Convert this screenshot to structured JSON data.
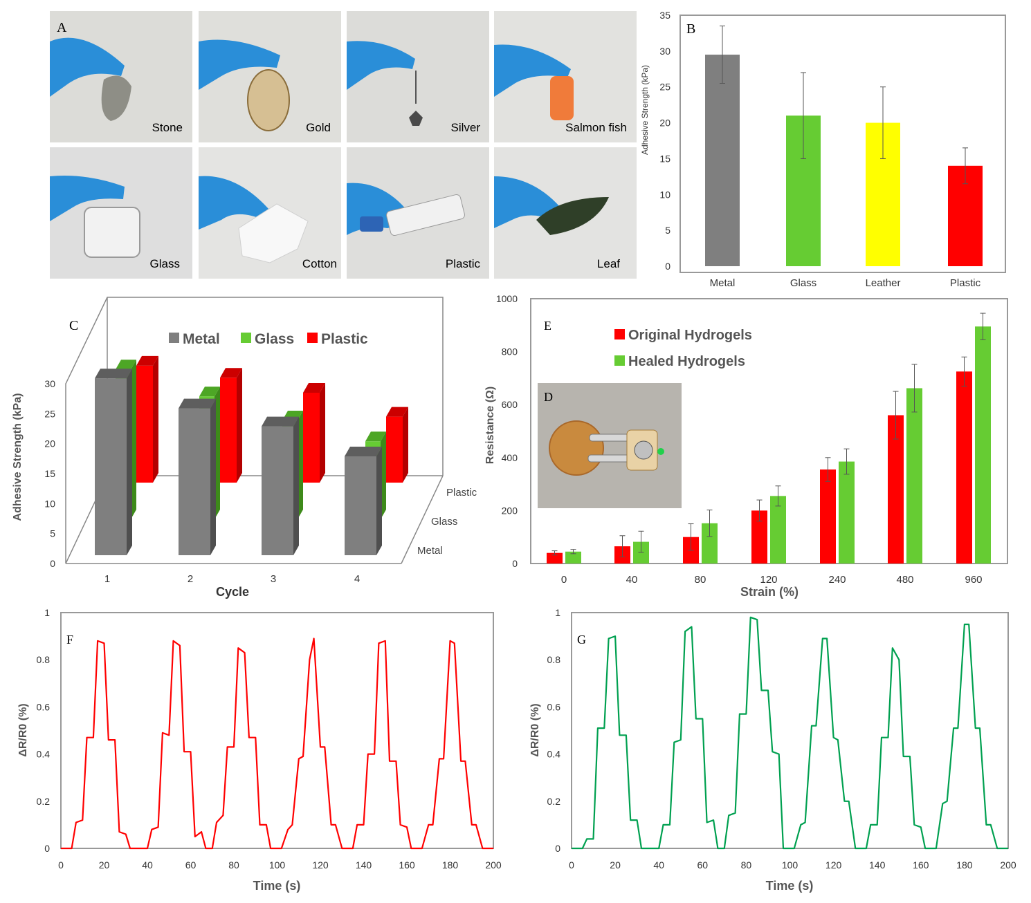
{
  "panel_labels": {
    "a": "A",
    "b": "B",
    "c": "C",
    "d": "D",
    "e": "E",
    "f": "F",
    "g": "G"
  },
  "photos": [
    {
      "label": "Stone"
    },
    {
      "label": "Gold"
    },
    {
      "label": "Silver"
    },
    {
      "label": "Salmon fish"
    },
    {
      "label": "Glass"
    },
    {
      "label": "Cotton"
    },
    {
      "label": "Plastic"
    },
    {
      "label": "Leaf"
    }
  ],
  "colors": {
    "gray": "#7f7f7f",
    "green": "#66cc33",
    "red": "#ff0000",
    "yellow": "#ffff00",
    "teal": "#00a050",
    "frame": "#999999"
  },
  "chart_data": [
    {
      "id": "B",
      "type": "bar",
      "title": "",
      "categories": [
        "Metal",
        "Glass",
        "Leather",
        "Plastic"
      ],
      "values": [
        29.5,
        21,
        20,
        14
      ],
      "errors": [
        4,
        6,
        5,
        2.5
      ],
      "bar_colors": [
        "#7f7f7f",
        "#66cc33",
        "#ffff00",
        "#ff0000"
      ],
      "xlabel": "",
      "ylabel": "Adhesive Strength (kPa)",
      "ylim": [
        0,
        35
      ],
      "yticks": [
        "0",
        "5",
        "10",
        "15",
        "20",
        "25",
        "30",
        "35"
      ]
    },
    {
      "id": "C",
      "type": "bar",
      "title": "",
      "categories": [
        "1",
        "2",
        "3",
        "4"
      ],
      "series": [
        {
          "name": "Metal",
          "values": [
            29.5,
            24.5,
            21.5,
            16.5
          ]
        },
        {
          "name": "Glass",
          "values": [
            25,
            20.5,
            16.5,
            13
          ]
        },
        {
          "name": "Plastic",
          "values": [
            19.5,
            17.5,
            15,
            11
          ]
        }
      ],
      "xlabel": "Cycle",
      "ylabel": "Adhesive Strength (kPa)",
      "ylim": [
        0,
        30
      ],
      "yticks": [
        "0",
        "5",
        "10",
        "15",
        "20",
        "25",
        "30"
      ],
      "depth_labels": [
        "Metal",
        "Glass",
        "Plastic"
      ]
    },
    {
      "id": "E",
      "type": "bar",
      "title": "",
      "categories": [
        "0",
        "40",
        "80",
        "120",
        "240",
        "480",
        "960"
      ],
      "series": [
        {
          "name": "Original Hydrogels",
          "values": [
            40,
            65,
            100,
            200,
            355,
            560,
            725
          ],
          "errors": [
            8,
            40,
            50,
            40,
            45,
            90,
            55
          ]
        },
        {
          "name": "Healed Hydrogels",
          "values": [
            45,
            82,
            152,
            255,
            385,
            662,
            895
          ],
          "errors": [
            8,
            40,
            50,
            38,
            48,
            90,
            50
          ]
        }
      ],
      "xlabel": "Strain (%)",
      "ylabel": "Resistance (Ω)",
      "ylim": [
        0,
        1000
      ],
      "yticks": [
        "0",
        "200",
        "400",
        "600",
        "800",
        "1000"
      ]
    },
    {
      "id": "F",
      "type": "line",
      "title": "",
      "series": [
        {
          "name": "Original",
          "x": [
            0,
            5,
            7,
            10,
            12,
            15,
            17,
            20,
            22,
            25,
            27,
            30,
            32,
            35,
            37,
            40,
            42,
            45,
            47,
            50,
            52,
            55,
            57,
            60,
            62,
            65,
            67,
            70,
            72,
            75,
            77,
            80,
            82,
            85,
            87,
            90,
            92,
            95,
            97,
            100,
            102,
            105,
            107,
            110,
            112,
            115,
            117,
            120,
            122,
            125,
            127,
            130,
            132,
            135,
            137,
            140,
            142,
            145,
            147,
            150,
            152,
            155,
            157,
            160,
            162,
            165,
            167,
            170,
            172,
            175,
            177,
            180,
            182,
            185,
            187,
            190,
            192,
            195,
            197,
            200
          ],
          "y": [
            0,
            0,
            0.11,
            0.12,
            0.47,
            0.47,
            0.88,
            0.87,
            0.46,
            0.46,
            0.07,
            0.06,
            0,
            0,
            0,
            0,
            0.08,
            0.09,
            0.49,
            0.48,
            0.88,
            0.86,
            0.41,
            0.41,
            0.05,
            0.07,
            0,
            0,
            0.11,
            0.14,
            0.43,
            0.43,
            0.85,
            0.83,
            0.47,
            0.47,
            0.1,
            0.1,
            0,
            0,
            0,
            0.08,
            0.1,
            0.38,
            0.39,
            0.8,
            0.89,
            0.43,
            0.43,
            0.1,
            0.1,
            0,
            0,
            0,
            0.1,
            0.1,
            0.4,
            0.4,
            0.87,
            0.88,
            0.37,
            0.37,
            0.1,
            0.09,
            0,
            0,
            0,
            0.1,
            0.1,
            0.38,
            0.38,
            0.88,
            0.87,
            0.37,
            0.37,
            0.1,
            0.1,
            0,
            0,
            0
          ]
        }
      ],
      "xlabel": "Time (s)",
      "ylabel": "ΔR/R0 (%)",
      "xlim": [
        0,
        200
      ],
      "ylim": [
        0,
        1
      ],
      "xticks": [
        "0",
        "20",
        "40",
        "60",
        "80",
        "100",
        "120",
        "140",
        "160",
        "180",
        "200"
      ],
      "yticks": [
        "0",
        "0.2",
        "0.4",
        "0.6",
        "0.8",
        "1"
      ]
    },
    {
      "id": "G",
      "type": "line",
      "title": "",
      "series": [
        {
          "name": "Healed",
          "x": [
            0,
            5,
            7,
            10,
            12,
            15,
            17,
            20,
            22,
            25,
            27,
            30,
            32,
            35,
            37,
            40,
            42,
            45,
            47,
            50,
            52,
            55,
            57,
            60,
            62,
            65,
            67,
            70,
            72,
            75,
            77,
            80,
            82,
            85,
            87,
            90,
            92,
            95,
            97,
            100,
            102,
            105,
            107,
            110,
            112,
            115,
            117,
            120,
            122,
            125,
            127,
            130,
            132,
            135,
            137,
            140,
            142,
            145,
            147,
            150,
            152,
            155,
            157,
            160,
            162,
            165,
            167,
            170,
            172,
            175,
            177,
            180,
            182,
            185,
            187,
            190,
            192,
            195,
            197,
            200
          ],
          "y": [
            0,
            0,
            0.04,
            0.04,
            0.51,
            0.51,
            0.89,
            0.9,
            0.48,
            0.48,
            0.12,
            0.12,
            0,
            0,
            0,
            0,
            0.1,
            0.1,
            0.45,
            0.46,
            0.92,
            0.94,
            0.55,
            0.55,
            0.11,
            0.12,
            0,
            0,
            0.14,
            0.15,
            0.57,
            0.57,
            0.98,
            0.97,
            0.67,
            0.67,
            0.41,
            0.4,
            0,
            0,
            0,
            0.1,
            0.11,
            0.52,
            0.52,
            0.89,
            0.89,
            0.47,
            0.46,
            0.2,
            0.2,
            0,
            0,
            0,
            0.1,
            0.1,
            0.47,
            0.47,
            0.85,
            0.8,
            0.39,
            0.39,
            0.1,
            0.09,
            0,
            0,
            0,
            0.19,
            0.2,
            0.51,
            0.51,
            0.95,
            0.95,
            0.51,
            0.51,
            0.1,
            0.1,
            0,
            0,
            0
          ]
        }
      ],
      "xlabel": "Time (s)",
      "ylabel": "ΔR/R0 (%)",
      "xlim": [
        0,
        200
      ],
      "ylim": [
        0,
        1
      ],
      "xticks": [
        "0",
        "20",
        "40",
        "60",
        "80",
        "100",
        "120",
        "140",
        "160",
        "180",
        "200"
      ],
      "yticks": [
        "0",
        "0.2",
        "0.4",
        "0.6",
        "0.8",
        "1"
      ]
    }
  ]
}
